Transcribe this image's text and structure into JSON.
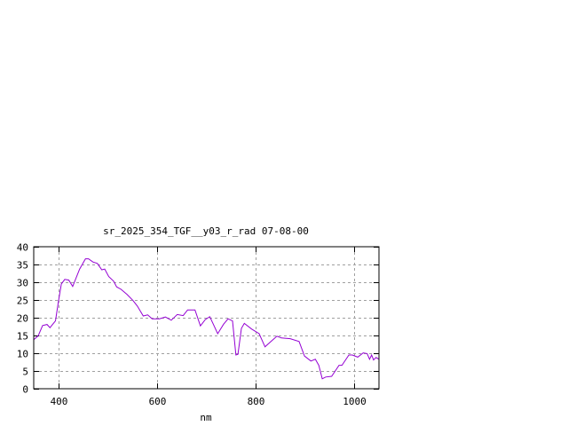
{
  "chart_data": {
    "type": "line",
    "title": "sr_2025_354_TGF__y03_r_rad 07-08-00",
    "xlabel": "nm",
    "ylabel": "",
    "xlim": [
      350,
      1050
    ],
    "ylim": [
      0,
      40
    ],
    "xticks": [
      400,
      600,
      800,
      1000
    ],
    "yticks": [
      0,
      5,
      10,
      15,
      20,
      25,
      30,
      35,
      40
    ],
    "grid": true,
    "line_color": "#9400d3",
    "series": [
      {
        "x": [
          350,
          359,
          368,
          377,
          383,
          394,
          400,
          406,
          413,
          421,
          429,
          443,
          455,
          461,
          470,
          479,
          488,
          494,
          502,
          512,
          518,
          527,
          539,
          551,
          560,
          572,
          581,
          590,
          605,
          617,
          629,
          641,
          653,
          662,
          677,
          688,
          698,
          707,
          723,
          735,
          744,
          753,
          760,
          764,
          771,
          777,
          792,
          807,
          819,
          831,
          843,
          852,
          870,
          888,
          899,
          912,
          921,
          928,
          935,
          942,
          954,
          969,
          975,
          989,
          996,
          1007,
          1018,
          1026,
          1031,
          1035,
          1039,
          1044,
          1050
        ],
        "y": [
          13.8,
          14.9,
          17.8,
          18.1,
          17.2,
          19.1,
          24.5,
          29.5,
          30.8,
          30.6,
          28.8,
          33.7,
          36.6,
          36.6,
          35.7,
          35.3,
          33.5,
          33.7,
          31.6,
          30.3,
          28.7,
          28.0,
          26.6,
          24.9,
          23.3,
          20.5,
          20.8,
          19.7,
          19.7,
          20.2,
          19.3,
          20.9,
          20.6,
          22.2,
          22.2,
          17.7,
          19.5,
          20.3,
          15.5,
          18.2,
          19.7,
          19.1,
          9.5,
          9.7,
          17.0,
          18.4,
          16.8,
          15.5,
          11.8,
          13.3,
          14.8,
          14.3,
          14.1,
          13.3,
          9.2,
          7.8,
          8.3,
          6.6,
          2.8,
          3.3,
          3.5,
          6.6,
          6.6,
          9.5,
          9.5,
          8.9,
          10.1,
          9.9,
          8.3,
          9.5,
          8.1,
          8.8,
          8.3
        ]
      }
    ]
  }
}
